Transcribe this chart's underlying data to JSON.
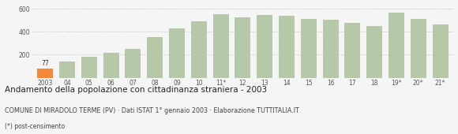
{
  "categories": [
    "2003",
    "04",
    "05",
    "06",
    "07",
    "08",
    "09",
    "10",
    "11*",
    "12",
    "13",
    "14",
    "15",
    "16",
    "17",
    "18",
    "19*",
    "20*",
    "21*"
  ],
  "values": [
    77,
    140,
    185,
    215,
    248,
    355,
    430,
    493,
    550,
    527,
    543,
    537,
    510,
    503,
    480,
    447,
    567,
    510,
    463
  ],
  "bar_colors": [
    "#f4893a",
    "#b5c9a8",
    "#b5c9a8",
    "#b5c9a8",
    "#b5c9a8",
    "#b5c9a8",
    "#b5c9a8",
    "#b5c9a8",
    "#b5c9a8",
    "#b5c9a8",
    "#b5c9a8",
    "#b5c9a8",
    "#b5c9a8",
    "#b5c9a8",
    "#b5c9a8",
    "#b5c9a8",
    "#b5c9a8",
    "#b5c9a8",
    "#b5c9a8"
  ],
  "highlight_label": "77",
  "highlight_index": 0,
  "ylim": [
    0,
    630
  ],
  "yticks": [
    0,
    200,
    400,
    600
  ],
  "grid_color": "#cccccc",
  "background_color": "#f5f5f5",
  "title": "Andamento della popolazione con cittadinanza straniera - 2003",
  "subtitle": "COMUNE DI MIRADOLO TERME (PV) · Dati ISTAT 1° gennaio 2003 · Elaborazione TUTTITALIA.IT",
  "footnote": "(*) post-censimento",
  "title_fontsize": 7.5,
  "subtitle_fontsize": 5.8,
  "footnote_fontsize": 5.5,
  "bar_label_fontsize": 5.5,
  "tick_fontsize": 5.5
}
